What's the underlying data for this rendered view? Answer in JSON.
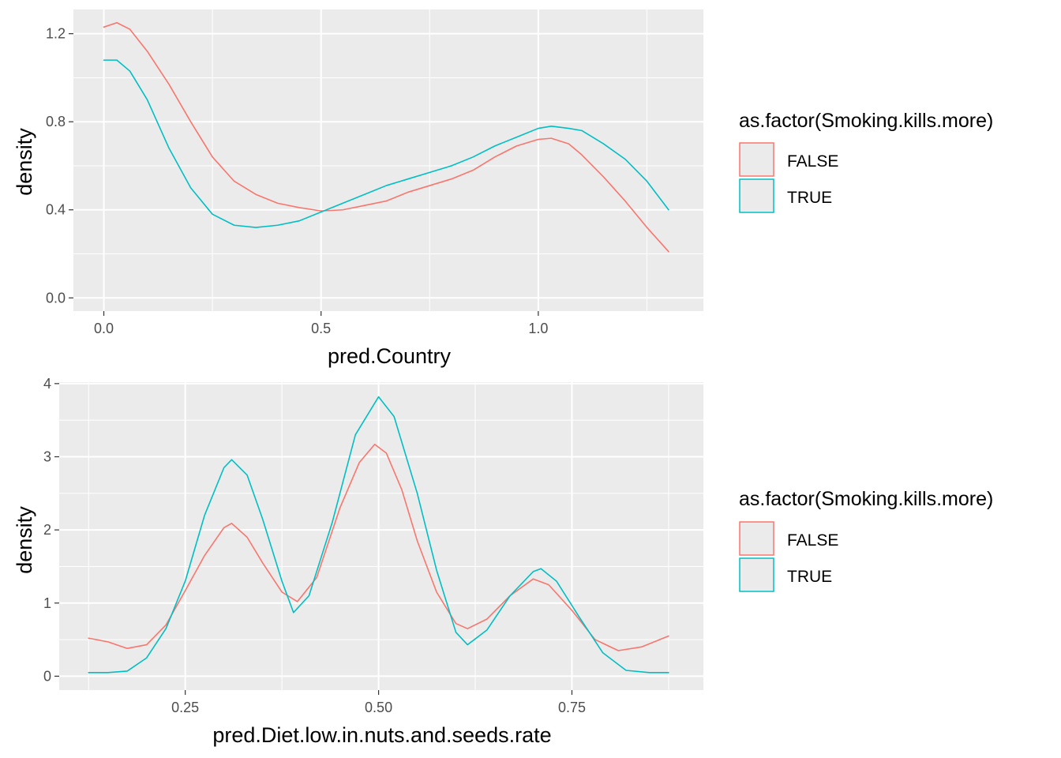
{
  "chart_data": [
    {
      "type": "line",
      "subtype": "density",
      "xlabel": "pred.Country",
      "ylabel": "density",
      "xlim": [
        -0.07,
        1.38
      ],
      "ylim": [
        -0.06,
        1.31
      ],
      "x_ticks": [
        0.0,
        0.5,
        1.0
      ],
      "x_tick_labels": [
        "0.0",
        "0.5",
        "1.0"
      ],
      "y_ticks": [
        0.0,
        0.4,
        0.8,
        1.2
      ],
      "y_tick_labels": [
        "0.0",
        "0.4",
        "0.8",
        "1.2"
      ],
      "grid": true,
      "legend": {
        "title": "as.factor(Smoking.kills.more)",
        "position": "right",
        "entries": [
          "FALSE",
          "TRUE"
        ]
      },
      "series": [
        {
          "name": "FALSE",
          "color": "#F8766D",
          "points": [
            [
              0.0,
              1.23
            ],
            [
              0.03,
              1.25
            ],
            [
              0.06,
              1.22
            ],
            [
              0.1,
              1.12
            ],
            [
              0.15,
              0.97
            ],
            [
              0.2,
              0.8
            ],
            [
              0.25,
              0.64
            ],
            [
              0.3,
              0.53
            ],
            [
              0.35,
              0.47
            ],
            [
              0.4,
              0.43
            ],
            [
              0.45,
              0.41
            ],
            [
              0.5,
              0.395
            ],
            [
              0.55,
              0.4
            ],
            [
              0.6,
              0.42
            ],
            [
              0.65,
              0.44
            ],
            [
              0.7,
              0.48
            ],
            [
              0.75,
              0.51
            ],
            [
              0.8,
              0.54
            ],
            [
              0.85,
              0.58
            ],
            [
              0.9,
              0.64
            ],
            [
              0.95,
              0.69
            ],
            [
              1.0,
              0.72
            ],
            [
              1.03,
              0.725
            ],
            [
              1.07,
              0.7
            ],
            [
              1.1,
              0.65
            ],
            [
              1.15,
              0.55
            ],
            [
              1.2,
              0.44
            ],
            [
              1.25,
              0.32
            ],
            [
              1.3,
              0.21
            ]
          ]
        },
        {
          "name": "TRUE",
          "color": "#00BFC4",
          "points": [
            [
              0.0,
              1.08
            ],
            [
              0.03,
              1.08
            ],
            [
              0.06,
              1.03
            ],
            [
              0.1,
              0.9
            ],
            [
              0.15,
              0.68
            ],
            [
              0.2,
              0.5
            ],
            [
              0.25,
              0.38
            ],
            [
              0.3,
              0.33
            ],
            [
              0.35,
              0.32
            ],
            [
              0.4,
              0.33
            ],
            [
              0.45,
              0.35
            ],
            [
              0.5,
              0.39
            ],
            [
              0.55,
              0.43
            ],
            [
              0.6,
              0.47
            ],
            [
              0.65,
              0.51
            ],
            [
              0.7,
              0.54
            ],
            [
              0.75,
              0.57
            ],
            [
              0.8,
              0.6
            ],
            [
              0.85,
              0.64
            ],
            [
              0.9,
              0.69
            ],
            [
              0.95,
              0.73
            ],
            [
              1.0,
              0.77
            ],
            [
              1.03,
              0.78
            ],
            [
              1.07,
              0.77
            ],
            [
              1.1,
              0.76
            ],
            [
              1.15,
              0.7
            ],
            [
              1.2,
              0.63
            ],
            [
              1.25,
              0.53
            ],
            [
              1.3,
              0.4
            ]
          ]
        }
      ]
    },
    {
      "type": "line",
      "subtype": "density",
      "xlabel": "pred.Diet.low.in.nuts.and.seeds.rate",
      "ylabel": "density",
      "xlim": [
        0.087,
        0.92
      ],
      "ylim": [
        -0.19,
        4.02
      ],
      "x_ticks": [
        0.25,
        0.5,
        0.75
      ],
      "x_tick_labels": [
        "0.25",
        "0.50",
        "0.75"
      ],
      "y_ticks": [
        0,
        1,
        2,
        3,
        4
      ],
      "y_tick_labels": [
        "0",
        "1",
        "2",
        "3",
        "4"
      ],
      "grid": true,
      "legend": {
        "title": "as.factor(Smoking.kills.more)",
        "position": "right",
        "entries": [
          "FALSE",
          "TRUE"
        ]
      },
      "series": [
        {
          "name": "FALSE",
          "color": "#F8766D",
          "points": [
            [
              0.125,
              0.52
            ],
            [
              0.15,
              0.47
            ],
            [
              0.175,
              0.38
            ],
            [
              0.2,
              0.43
            ],
            [
              0.225,
              0.7
            ],
            [
              0.25,
              1.17
            ],
            [
              0.275,
              1.65
            ],
            [
              0.3,
              2.03
            ],
            [
              0.31,
              2.09
            ],
            [
              0.33,
              1.9
            ],
            [
              0.35,
              1.55
            ],
            [
              0.375,
              1.15
            ],
            [
              0.395,
              1.02
            ],
            [
              0.42,
              1.35
            ],
            [
              0.45,
              2.3
            ],
            [
              0.475,
              2.92
            ],
            [
              0.495,
              3.17
            ],
            [
              0.51,
              3.05
            ],
            [
              0.53,
              2.55
            ],
            [
              0.55,
              1.85
            ],
            [
              0.575,
              1.15
            ],
            [
              0.6,
              0.72
            ],
            [
              0.615,
              0.65
            ],
            [
              0.64,
              0.78
            ],
            [
              0.67,
              1.1
            ],
            [
              0.7,
              1.33
            ],
            [
              0.72,
              1.25
            ],
            [
              0.75,
              0.9
            ],
            [
              0.78,
              0.5
            ],
            [
              0.81,
              0.35
            ],
            [
              0.84,
              0.4
            ],
            [
              0.875,
              0.55
            ]
          ]
        },
        {
          "name": "TRUE",
          "color": "#00BFC4",
          "points": [
            [
              0.125,
              0.05
            ],
            [
              0.15,
              0.05
            ],
            [
              0.175,
              0.07
            ],
            [
              0.2,
              0.25
            ],
            [
              0.225,
              0.65
            ],
            [
              0.25,
              1.3
            ],
            [
              0.275,
              2.2
            ],
            [
              0.3,
              2.85
            ],
            [
              0.31,
              2.96
            ],
            [
              0.33,
              2.75
            ],
            [
              0.35,
              2.15
            ],
            [
              0.375,
              1.3
            ],
            [
              0.39,
              0.87
            ],
            [
              0.41,
              1.1
            ],
            [
              0.44,
              2.1
            ],
            [
              0.47,
              3.3
            ],
            [
              0.5,
              3.82
            ],
            [
              0.52,
              3.55
            ],
            [
              0.55,
              2.5
            ],
            [
              0.575,
              1.45
            ],
            [
              0.6,
              0.6
            ],
            [
              0.615,
              0.43
            ],
            [
              0.64,
              0.63
            ],
            [
              0.67,
              1.1
            ],
            [
              0.7,
              1.43
            ],
            [
              0.71,
              1.47
            ],
            [
              0.73,
              1.3
            ],
            [
              0.76,
              0.8
            ],
            [
              0.79,
              0.32
            ],
            [
              0.82,
              0.08
            ],
            [
              0.85,
              0.05
            ],
            [
              0.875,
              0.05
            ]
          ]
        }
      ]
    }
  ]
}
